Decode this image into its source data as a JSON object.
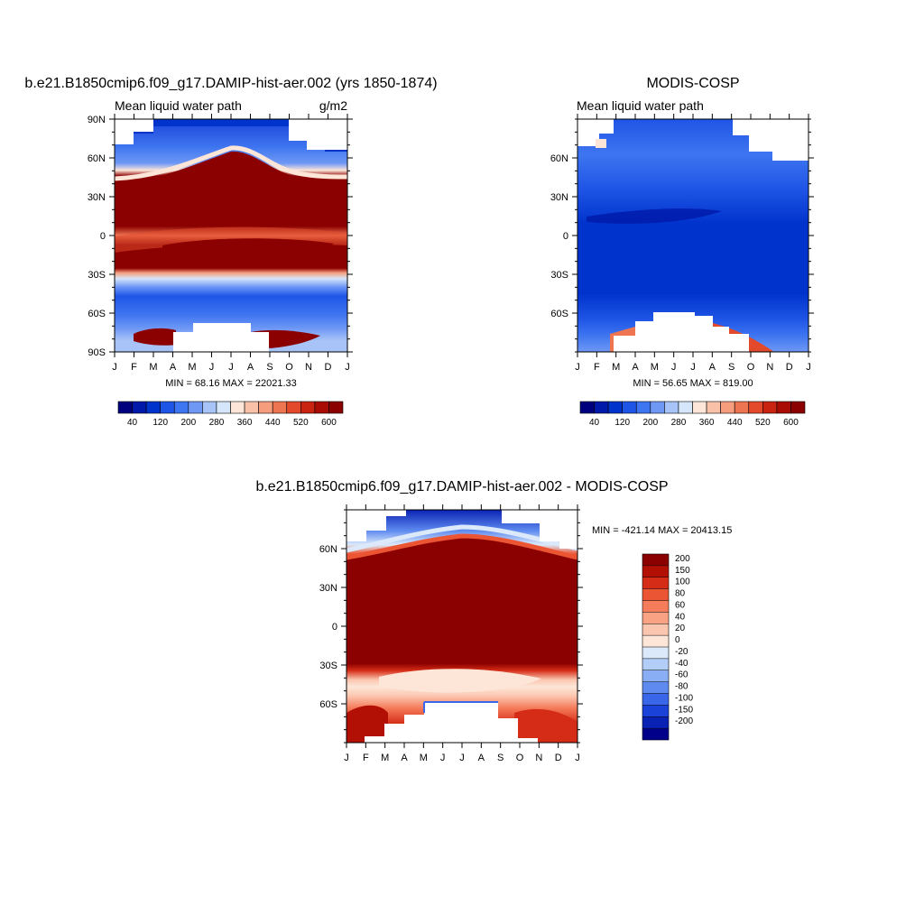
{
  "panels": {
    "model": {
      "title": "b.e21.B1850cmip6.f09_g17.DAMIP-hist-aer.002 (yrs 1850-1874)",
      "left_string": "Mean liquid water path",
      "right_string": "g/m2",
      "stats": "MIN =  68.16 MAX = 22021.33"
    },
    "obs": {
      "title": "MODIS-COSP",
      "left_string": "Mean liquid water path",
      "stats": "MIN =  56.65 MAX = 819.00"
    },
    "diff": {
      "title": "b.e21.B1850cmip6.f09_g17.DAMIP-hist-aer.002 - MODIS-COSP",
      "stats": "MIN = -421.14 MAX = 20413.15"
    }
  },
  "chart_data": [
    {
      "type": "heatmap",
      "x_axis": "month",
      "x_tick_labels": [
        "J",
        "F",
        "M",
        "A",
        "M",
        "J",
        "J",
        "A",
        "S",
        "O",
        "N",
        "D",
        "J"
      ],
      "y_tick_labels": [
        "90N",
        "60N",
        "30N",
        "0",
        "30S",
        "60S",
        "90S"
      ],
      "ylim": [
        -90,
        90
      ],
      "colorbar_labels": [
        "40",
        "120",
        "200",
        "280",
        "360",
        "440",
        "520",
        "600"
      ],
      "colorbar_colors": [
        "#00007f",
        "#0019a9",
        "#0033cc",
        "#1f55e6",
        "#3e75f0",
        "#6f98f5",
        "#a7c3f7",
        "#d6e6fa",
        "#fde6d8",
        "#f9c2a8",
        "#f59d7d",
        "#ee7552",
        "#e24a2b",
        "#c82411",
        "#a80c04",
        "#8b0000"
      ]
    },
    {
      "type": "heatmap",
      "x_axis": "month",
      "x_tick_labels": [
        "J",
        "F",
        "M",
        "A",
        "M",
        "J",
        "J",
        "A",
        "S",
        "O",
        "N",
        "D",
        "J"
      ],
      "y_tick_labels": [
        "60N",
        "30N",
        "0",
        "30S",
        "60S"
      ],
      "ylim": [
        -90,
        90
      ],
      "colorbar_labels": [
        "40",
        "120",
        "200",
        "280",
        "360",
        "440",
        "520",
        "600"
      ],
      "colorbar_colors": [
        "#00007f",
        "#0019a9",
        "#0033cc",
        "#1f55e6",
        "#3e75f0",
        "#6f98f5",
        "#a7c3f7",
        "#d6e6fa",
        "#fde6d8",
        "#f9c2a8",
        "#f59d7d",
        "#ee7552",
        "#e24a2b",
        "#c82411",
        "#a80c04",
        "#8b0000"
      ]
    },
    {
      "type": "heatmap",
      "x_axis": "month",
      "x_tick_labels": [
        "J",
        "F",
        "M",
        "A",
        "M",
        "J",
        "J",
        "A",
        "S",
        "O",
        "N",
        "D",
        "J"
      ],
      "y_tick_labels": [
        "60N",
        "30N",
        "0",
        "30S",
        "60S"
      ],
      "ylim": [
        -90,
        90
      ],
      "colorbar_labels": [
        "200",
        "150",
        "100",
        "80",
        "60",
        "40",
        "20",
        "0",
        "-20",
        "-40",
        "-60",
        "-80",
        "-100",
        "-150",
        "-200"
      ],
      "colorbar_colors": [
        "#8b0000",
        "#b21005",
        "#d42c17",
        "#ec5533",
        "#f57d5b",
        "#f9a284",
        "#fbc6b0",
        "#fde6d8",
        "#dbe9fa",
        "#b2cdf8",
        "#8aaef4",
        "#5f8bf0",
        "#3a67ea",
        "#1a41d8",
        "#0a22b4",
        "#00008b"
      ]
    }
  ]
}
